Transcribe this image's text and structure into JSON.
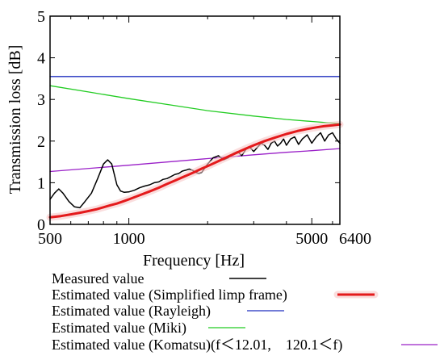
{
  "chart_data": {
    "type": "line",
    "xlabel": "Frequency [Hz]",
    "ylabel": "Transmission loss [dB]",
    "xscale": "log",
    "xlim": [
      500,
      6400
    ],
    "ylim": [
      0,
      5
    ],
    "x_ticks": [
      500,
      1000,
      5000,
      6400
    ],
    "y_ticks": [
      0,
      1,
      2,
      3,
      4,
      5
    ],
    "x_tick_labels": [
      "500",
      "1000",
      "5000",
      "6400"
    ],
    "y_tick_labels": [
      "0",
      "1",
      "2",
      "3",
      "4",
      "5"
    ],
    "grid": false,
    "legend_position": "bottom",
    "series": [
      {
        "name": "Measured value",
        "color": "#000000",
        "x": [
          500,
          520,
          540,
          560,
          590,
          620,
          650,
          680,
          720,
          760,
          800,
          830,
          860,
          880,
          900,
          930,
          960,
          1000,
          1050,
          1100,
          1150,
          1200,
          1250,
          1300,
          1350,
          1400,
          1450,
          1500,
          1550,
          1600,
          1650,
          1700,
          1750,
          1800,
          1850,
          1900,
          1950,
          2000,
          2100,
          2200,
          2300,
          2400,
          2500,
          2600,
          2700,
          2800,
          2900,
          3000,
          3100,
          3200,
          3300,
          3400,
          3500,
          3600,
          3700,
          3800,
          3900,
          4000,
          4150,
          4300,
          4450,
          4600,
          4800,
          5000,
          5200,
          5400,
          5600,
          5800,
          6000,
          6200,
          6400
        ],
        "values": [
          0.6,
          0.75,
          0.85,
          0.75,
          0.55,
          0.42,
          0.4,
          0.55,
          0.75,
          1.1,
          1.45,
          1.55,
          1.45,
          1.2,
          0.95,
          0.8,
          0.77,
          0.78,
          0.82,
          0.88,
          0.92,
          0.95,
          1.0,
          1.02,
          1.08,
          1.1,
          1.15,
          1.2,
          1.22,
          1.28,
          1.3,
          1.33,
          1.3,
          1.25,
          1.22,
          1.25,
          1.35,
          1.45,
          1.6,
          1.65,
          1.55,
          1.6,
          1.7,
          1.75,
          1.65,
          1.8,
          1.85,
          1.75,
          1.85,
          1.95,
          1.9,
          1.8,
          1.95,
          2.0,
          1.88,
          1.95,
          2.05,
          1.9,
          2.05,
          2.1,
          1.92,
          2.05,
          2.15,
          1.95,
          2.1,
          2.2,
          2.0,
          2.15,
          2.2,
          2.05,
          1.95
        ]
      },
      {
        "name": "Estimated value (Simplified limp frame)",
        "color": "#e41a1c",
        "x": [
          500,
          550,
          600,
          650,
          700,
          750,
          800,
          850,
          900,
          950,
          1000,
          1100,
          1200,
          1300,
          1400,
          1500,
          1600,
          1700,
          1800,
          1900,
          2000,
          2200,
          2400,
          2600,
          2800,
          3000,
          3300,
          3600,
          4000,
          4400,
          4800,
          5200,
          5600,
          6000,
          6400
        ],
        "values": [
          0.17,
          0.2,
          0.24,
          0.28,
          0.32,
          0.36,
          0.41,
          0.46,
          0.5,
          0.55,
          0.6,
          0.7,
          0.79,
          0.88,
          0.97,
          1.05,
          1.13,
          1.2,
          1.27,
          1.34,
          1.4,
          1.52,
          1.63,
          1.73,
          1.82,
          1.9,
          2.0,
          2.08,
          2.17,
          2.24,
          2.29,
          2.33,
          2.36,
          2.38,
          2.4
        ]
      },
      {
        "name": "Estimated value (Rayleigh)",
        "color": "#1f2fbf",
        "x": [
          500,
          6400
        ],
        "values": [
          3.55,
          3.55
        ]
      },
      {
        "name": "Estimated value (Miki)",
        "color": "#22cc22",
        "x": [
          500,
          700,
          1000,
          1500,
          2000,
          3000,
          4000,
          5000,
          6400
        ],
        "values": [
          3.33,
          3.18,
          3.02,
          2.85,
          2.73,
          2.6,
          2.52,
          2.47,
          2.42
        ]
      },
      {
        "name": "Estimated value (Komatsu)(f＜12.01,　120.1＜f)",
        "color": "#9a20c8",
        "x": [
          500,
          1000,
          2000,
          3000,
          4000,
          5000,
          6400
        ],
        "values": [
          1.27,
          1.42,
          1.58,
          1.67,
          1.73,
          1.77,
          1.82
        ]
      }
    ]
  }
}
